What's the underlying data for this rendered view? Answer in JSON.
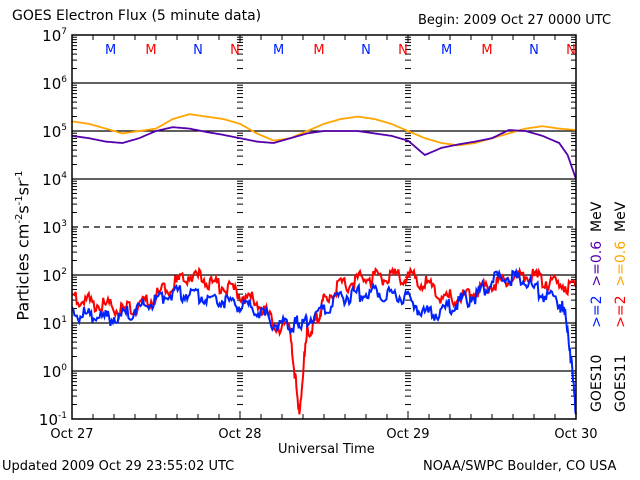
{
  "header": {
    "title": "GOES Electron Flux (5 minute data)",
    "begin": "Begin: 2009 Oct 27 0000 UTC"
  },
  "footer": {
    "updated": "Updated 2009 Oct 29 23:55:02 UTC",
    "credit": "NOAA/SWPC Boulder, CO USA"
  },
  "legend": {
    "goes10": "GOES10",
    "goes11": "GOES11",
    "g10_high": ">=2",
    "g10_low": ">=0.6",
    "g11_high": ">=2",
    "g11_low": ">=0.6",
    "unit": "MeV"
  },
  "colors": {
    "goes10_high": "#0022ff",
    "goes10_low": "#5500aa",
    "goes11_high": "#ff0000",
    "goes11_low": "#ffa500"
  },
  "chart_data": {
    "type": "line",
    "title": "GOES Electron Flux (5 minute data)",
    "xlabel": "Universal Time",
    "ylabel": "Particles cm-2 s-1 sr-1",
    "yscale": "log",
    "ylim": [
      0.1,
      10000000
    ],
    "xlim_days": [
      0,
      3
    ],
    "x_tick_labels": [
      "Oct 27",
      "Oct 28",
      "Oct 29",
      "Oct 30"
    ],
    "y_tick_labels": [
      {
        "base": "10",
        "exp": "7"
      },
      {
        "base": "10",
        "exp": "6"
      },
      {
        "base": "10",
        "exp": "5"
      },
      {
        "base": "10",
        "exp": "4"
      },
      {
        "base": "10",
        "exp": "3"
      },
      {
        "base": "10",
        "exp": "2"
      },
      {
        "base": "10",
        "exp": "1"
      },
      {
        "base": "10",
        "exp": "0"
      },
      {
        "base": "10",
        "exp": "-1"
      }
    ],
    "markers": [
      {
        "label": "M",
        "day": 0.28,
        "color": "#0022ff"
      },
      {
        "label": "M",
        "day": 0.52,
        "color": "#ff0000"
      },
      {
        "label": "N",
        "day": 0.8,
        "color": "#0022ff"
      },
      {
        "label": "N",
        "day": 1.02,
        "color": "#ff0000"
      },
      {
        "label": "M",
        "day": 1.28,
        "color": "#0022ff"
      },
      {
        "label": "M",
        "day": 1.52,
        "color": "#ff0000"
      },
      {
        "label": "N",
        "day": 1.8,
        "color": "#0022ff"
      },
      {
        "label": "N",
        "day": 2.02,
        "color": "#ff0000"
      },
      {
        "label": "M",
        "day": 2.28,
        "color": "#0022ff"
      },
      {
        "label": "M",
        "day": 2.52,
        "color": "#ff0000"
      },
      {
        "label": "N",
        "day": 2.8,
        "color": "#0022ff"
      },
      {
        "label": "N",
        "day": 3.02,
        "color": "#ff0000"
      }
    ],
    "series": [
      {
        "name": "GOES11 >=0.6 MeV",
        "color": "#ffa500",
        "x_days": [
          0,
          0.1,
          0.2,
          0.3,
          0.4,
          0.5,
          0.6,
          0.7,
          0.8,
          0.9,
          1.0,
          1.1,
          1.2,
          1.3,
          1.4,
          1.5,
          1.6,
          1.7,
          1.8,
          1.9,
          2.0,
          2.1,
          2.2,
          2.3,
          2.4,
          2.5,
          2.6,
          2.7,
          2.8,
          2.9,
          3.0
        ],
        "log10_values": [
          5.2,
          5.15,
          5.05,
          4.95,
          5.0,
          5.05,
          5.25,
          5.35,
          5.3,
          5.25,
          5.15,
          4.95,
          4.8,
          4.85,
          5.0,
          5.15,
          5.25,
          5.3,
          5.25,
          5.15,
          5.0,
          4.85,
          4.75,
          4.7,
          4.75,
          4.85,
          4.95,
          5.05,
          5.1,
          5.05,
          5.02
        ]
      },
      {
        "name": "GOES10 >=0.6 MeV",
        "color": "#5500aa",
        "x_days": [
          0,
          0.1,
          0.2,
          0.3,
          0.4,
          0.5,
          0.6,
          0.7,
          0.8,
          0.9,
          1.0,
          1.1,
          1.2,
          1.3,
          1.4,
          1.5,
          1.6,
          1.7,
          1.8,
          1.9,
          2.0,
          2.1,
          2.2,
          2.3,
          2.4,
          2.5,
          2.6,
          2.7,
          2.8,
          2.9,
          2.95,
          3.0
        ],
        "log10_values": [
          4.9,
          4.85,
          4.78,
          4.75,
          4.85,
          5.0,
          5.08,
          5.05,
          4.98,
          4.92,
          4.85,
          4.78,
          4.75,
          4.85,
          4.95,
          5.0,
          5.0,
          5.0,
          4.95,
          4.9,
          4.8,
          4.5,
          4.65,
          4.72,
          4.78,
          4.85,
          5.02,
          5.0,
          4.9,
          4.75,
          4.5,
          4.0
        ]
      },
      {
        "name": "GOES11 >=2 MeV",
        "color": "#ff0000",
        "x_days": [
          0,
          0.1,
          0.2,
          0.3,
          0.4,
          0.5,
          0.6,
          0.7,
          0.8,
          0.9,
          1.0,
          1.1,
          1.2,
          1.3,
          1.35,
          1.4,
          1.45,
          1.5,
          1.6,
          1.7,
          1.8,
          1.9,
          2.0,
          2.1,
          2.2,
          2.3,
          2.4,
          2.5,
          2.6,
          2.7,
          2.8,
          2.9,
          3.0
        ],
        "log10_values": [
          1.55,
          1.45,
          1.35,
          1.25,
          1.35,
          1.55,
          1.8,
          2.0,
          1.9,
          1.75,
          1.6,
          1.45,
          1.0,
          0.85,
          -0.9,
          0.8,
          1.0,
          1.5,
          1.75,
          1.9,
          1.95,
          1.98,
          1.95,
          1.85,
          1.55,
          1.5,
          1.65,
          1.8,
          1.9,
          2.0,
          1.9,
          1.8,
          1.75
        ]
      },
      {
        "name": "GOES10 >=2 MeV",
        "color": "#0022ff",
        "x_days": [
          0,
          0.1,
          0.2,
          0.3,
          0.4,
          0.5,
          0.6,
          0.7,
          0.8,
          0.9,
          1.0,
          1.1,
          1.2,
          1.3,
          1.35,
          1.4,
          1.5,
          1.6,
          1.7,
          1.8,
          1.9,
          2.0,
          2.1,
          2.2,
          2.3,
          2.4,
          2.5,
          2.6,
          2.7,
          2.8,
          2.9,
          2.95,
          3.0
        ],
        "log10_values": [
          1.2,
          1.15,
          1.1,
          1.15,
          1.3,
          1.5,
          1.65,
          1.6,
          1.55,
          1.45,
          1.35,
          1.3,
          1.0,
          0.9,
          1.0,
          1.05,
          1.3,
          1.55,
          1.6,
          1.65,
          1.6,
          1.5,
          1.2,
          1.25,
          1.45,
          1.55,
          1.9,
          1.95,
          1.85,
          1.6,
          1.45,
          1.0,
          -0.9
        ]
      }
    ]
  }
}
